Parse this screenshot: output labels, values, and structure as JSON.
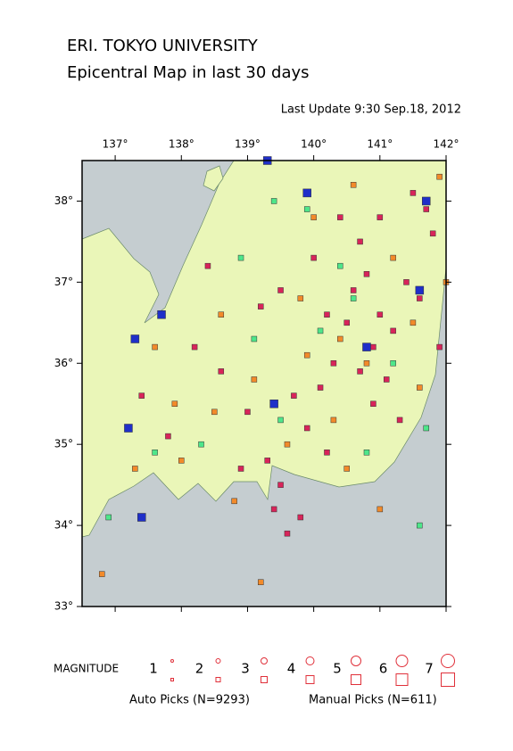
{
  "header": {
    "title": "ERI. TOKYO UNIVERSITY",
    "subtitle": "Epicentral Map in last 30 days",
    "updated": "Last Update 9:30 Sep.18, 2012"
  },
  "map": {
    "xlim": [
      136.5,
      142
    ],
    "ylim": [
      33,
      38.5
    ],
    "xticks": [
      {
        "value": 137,
        "label": "137°"
      },
      {
        "value": 138,
        "label": "138°"
      },
      {
        "value": 139,
        "label": "139°"
      },
      {
        "value": 140,
        "label": "140°"
      },
      {
        "value": 141,
        "label": "141°"
      },
      {
        "value": 142,
        "label": "142°"
      }
    ],
    "yticks": [
      {
        "value": 33,
        "label": "33°"
      },
      {
        "value": 34,
        "label": "34°"
      },
      {
        "value": 35,
        "label": "35°"
      },
      {
        "value": 36,
        "label": "36°"
      },
      {
        "value": 37,
        "label": "37°"
      },
      {
        "value": 38,
        "label": "38°"
      }
    ],
    "groups": [
      {
        "color": "#d8245a",
        "lon": [
          140.6,
          140.8,
          141.0,
          141.2,
          140.9,
          140.7,
          141.4,
          141.6,
          141.8,
          141.5,
          140.5,
          140.3,
          140.1,
          141.1,
          140.9,
          139.9,
          139.5,
          139.4,
          139.6,
          139.3,
          139.0,
          138.6,
          138.2,
          139.2,
          139.5,
          140.0,
          140.4,
          141.9,
          141.3,
          140.2,
          139.8,
          138.9,
          137.8,
          137.4,
          141.7,
          140.7,
          140.2,
          141.0,
          139.7,
          138.4
        ],
        "lat": [
          36.9,
          37.1,
          36.6,
          36.4,
          36.2,
          35.9,
          37.0,
          36.8,
          37.6,
          38.1,
          36.5,
          36.0,
          35.7,
          35.8,
          35.5,
          35.2,
          34.5,
          34.2,
          33.9,
          34.8,
          35.4,
          35.9,
          36.2,
          36.7,
          36.9,
          37.3,
          37.8,
          36.2,
          35.3,
          34.9,
          34.1,
          34.7,
          35.1,
          35.6,
          37.9,
          37.5,
          36.6,
          37.8,
          35.6,
          37.2
        ]
      },
      {
        "color": "#f28a2a",
        "lon": [
          140.4,
          140.8,
          141.5,
          139.9,
          139.1,
          138.5,
          138.0,
          137.9,
          140.3,
          139.6,
          141.2,
          141.9,
          140.6,
          138.8,
          139.2,
          137.3,
          140.0,
          141.6,
          142.0,
          139.8,
          138.6,
          137.6,
          140.5,
          141.0,
          136.8
        ],
        "lat": [
          36.3,
          36.0,
          36.5,
          36.1,
          35.8,
          35.4,
          34.8,
          35.5,
          35.3,
          35.0,
          37.3,
          38.3,
          38.2,
          34.3,
          33.3,
          34.7,
          37.8,
          35.7,
          37.0,
          36.8,
          36.6,
          36.2,
          34.7,
          34.2,
          33.4
        ]
      },
      {
        "color": "#4ee68a",
        "lon": [
          140.6,
          139.1,
          138.9,
          141.2,
          140.1,
          139.5,
          137.6,
          138.3,
          140.8,
          141.7,
          139.9,
          141.6,
          136.9,
          140.4,
          139.4
        ],
        "lat": [
          36.8,
          36.3,
          37.3,
          36.0,
          36.4,
          35.3,
          34.9,
          35.0,
          34.9,
          35.2,
          37.9,
          34.0,
          34.1,
          37.2,
          38.0
        ]
      },
      {
        "color": "#1f2fc8",
        "lon": [
          137.7,
          137.3,
          139.4,
          140.8,
          141.7,
          139.3,
          137.2,
          137.4,
          139.9,
          141.6
        ],
        "lat": [
          36.6,
          36.3,
          35.5,
          36.2,
          38.0,
          38.5,
          35.2,
          34.1,
          38.1,
          36.9
        ]
      }
    ]
  },
  "legend": {
    "title": "MAGNITUDE",
    "magnitudes": [
      1,
      2,
      3,
      4,
      5,
      6,
      7
    ],
    "auto": "Auto Picks (N=9293)",
    "manual": "Manual Picks (N=611)",
    "color": "#e0303a"
  }
}
